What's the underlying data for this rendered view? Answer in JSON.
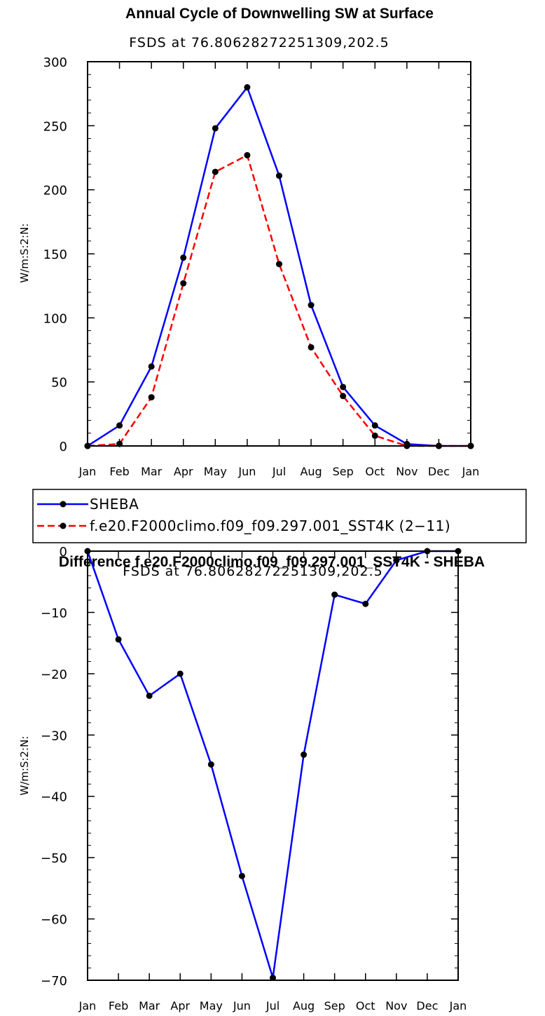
{
  "chart_data": [
    {
      "type": "line",
      "title": "Annual Cycle of Downwelling SW at Surface",
      "subtitle": "FSDS at 76.80628272251309,202.5",
      "ylabel": "W/m:S:2:N:",
      "xlabel": "",
      "ylim": [
        0,
        300
      ],
      "yticks": [
        0,
        50,
        100,
        150,
        200,
        250,
        300
      ],
      "categories": [
        "Jan",
        "Feb",
        "Mar",
        "Apr",
        "May",
        "Jun",
        "Jul",
        "Aug",
        "Sep",
        "Oct",
        "Nov",
        "Dec",
        "Jan"
      ],
      "series": [
        {
          "name": "SHEBA",
          "color": "#0000ff",
          "dash": "solid",
          "values": [
            0,
            16,
            62,
            147,
            248,
            280,
            211,
            110,
            46,
            16,
            1.5,
            0,
            0
          ]
        },
        {
          "name": "f.e20.F2000climo.f09_f09.297.001_SST4K (2−11)",
          "color": "#ff0000",
          "dash": "dashed",
          "values": [
            0,
            1.6,
            38,
            127,
            214,
            227,
            142,
            77,
            39,
            8,
            0,
            0,
            0
          ]
        }
      ],
      "legend": "below"
    },
    {
      "type": "line",
      "title": "Difference f.e20.F2000climo.f09_f09.297.001_SST4K - SHEBA",
      "subtitle": "FSDS at 76.80628272251309,202.5",
      "ylabel": "W/m:S:2:N:",
      "xlabel": "",
      "ylim": [
        -70,
        0
      ],
      "yticks": [
        0,
        -10,
        -20,
        -30,
        -40,
        -50,
        -60,
        -70
      ],
      "categories": [
        "Jan",
        "Feb",
        "Mar",
        "Apr",
        "May",
        "Jun",
        "Jul",
        "Aug",
        "Sep",
        "Oct",
        "Nov",
        "Dec",
        "Jan"
      ],
      "series": [
        {
          "name": "Difference",
          "color": "#0000ff",
          "dash": "solid",
          "values": [
            0,
            -14.4,
            -23.6,
            -20,
            -34.8,
            -53,
            -69.6,
            -33.2,
            -7.1,
            -8.6,
            -1.5,
            0,
            0
          ]
        }
      ]
    }
  ]
}
